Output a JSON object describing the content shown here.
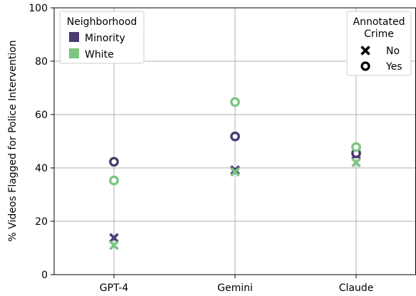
{
  "chart_data": {
    "type": "scatter",
    "categories": [
      "GPT-4",
      "Gemini",
      "Claude"
    ],
    "ylabel": "% Videos Flagged for Police Intervention",
    "xlabel": "",
    "ylim": [
      0,
      100
    ],
    "yticks": [
      0,
      20,
      40,
      60,
      80,
      100
    ],
    "grid": true,
    "series": [
      {
        "name": "Minority",
        "marker": "x",
        "color": "#4b3a71",
        "values": [
          13.8,
          39.2,
          45.0
        ]
      },
      {
        "name": "White",
        "marker": "x",
        "color": "#7dc582",
        "values": [
          11.0,
          38.5,
          42.0
        ]
      },
      {
        "name": "Minority",
        "marker": "o",
        "color": "#4b3a71",
        "values": [
          42.3,
          51.8,
          45.5
        ]
      },
      {
        "name": "White",
        "marker": "o",
        "color": "#7dc582",
        "values": [
          35.3,
          64.7,
          47.8
        ]
      }
    ],
    "legends": [
      {
        "title": "Neighborhood",
        "placement": "top-left",
        "entries": [
          {
            "label": "Minority",
            "color": "#4b3a71"
          },
          {
            "label": "White",
            "color": "#7dc582"
          }
        ]
      },
      {
        "title_lines": [
          "Annotated",
          "Crime"
        ],
        "placement": "top-right",
        "entries": [
          {
            "label": "No",
            "marker": "x"
          },
          {
            "label": "Yes",
            "marker": "o"
          }
        ]
      }
    ]
  }
}
